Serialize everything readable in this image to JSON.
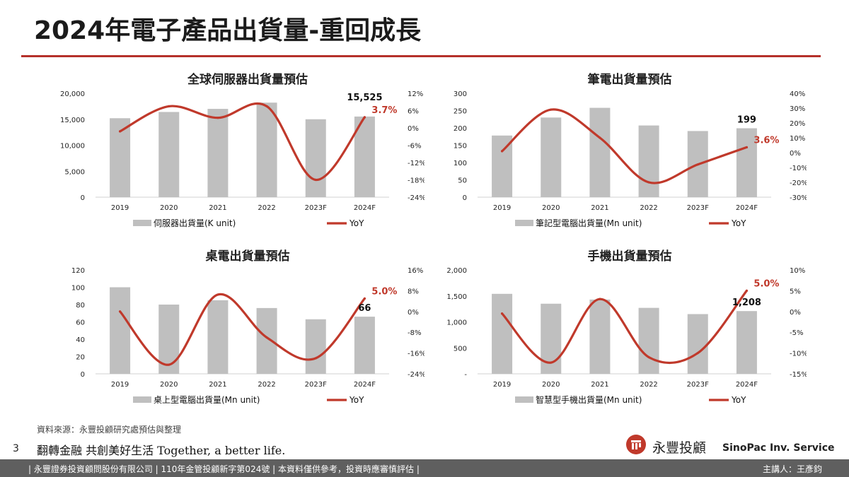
{
  "page": {
    "title": "2024年電子產品出貨量-重回成長",
    "source": "資料來源：永豐投顧研究處預估與整理",
    "page_number": "3",
    "slogan": "翻轉金融 共創美好生活 Together, a better life.",
    "logo_text": "永豐投顧",
    "logo_en": "SinoPac Inv. Service",
    "footer_left": "| 永豐證券投資顧問股份有限公司 | 110年金管投顧新字第024號 | 本資料僅供參考，投資時應審慎評估 |",
    "footer_right": "主講人：王彥鈞"
  },
  "colors": {
    "bar": "#bfbfbf",
    "line": "#c0392b",
    "accent": "#b5302a",
    "footer": "#5f5f5f"
  },
  "chart_data": [
    {
      "type": "bar",
      "title": "全球伺服器出貨量預估",
      "categories": [
        "2019",
        "2020",
        "2021",
        "2022",
        "2023F",
        "2024F"
      ],
      "left_axis": {
        "min": 0,
        "max": 20000,
        "ticks": [
          "0",
          "5,000",
          "10,000",
          "15,000",
          "20,000"
        ]
      },
      "right_axis": {
        "min": -24,
        "max": 12,
        "ticks": [
          "-24%",
          "-18%",
          "-12%",
          "-6%",
          "0%",
          "6%",
          "12%"
        ]
      },
      "series": [
        {
          "name": "伺服器出貨量(K unit)",
          "type": "bar",
          "values": [
            15200,
            16400,
            17000,
            18200,
            15000,
            15525
          ]
        },
        {
          "name": "YoY",
          "type": "line",
          "values": [
            -1.2,
            7.5,
            3.5,
            7.5,
            -18,
            3.7
          ]
        }
      ],
      "annotations": {
        "bar_label": "15,525",
        "line_label": "3.7%"
      }
    },
    {
      "type": "bar",
      "title": "筆電出貨量預估",
      "categories": [
        "2019",
        "2020",
        "2021",
        "2022",
        "2023F",
        "2024F"
      ],
      "left_axis": {
        "min": 0,
        "max": 300,
        "ticks": [
          "0",
          "50",
          "100",
          "150",
          "200",
          "250",
          "300"
        ]
      },
      "right_axis": {
        "min": -30,
        "max": 40,
        "ticks": [
          "-30%",
          "-20%",
          "-10%",
          "0%",
          "10%",
          "20%",
          "30%",
          "40%"
        ]
      },
      "series": [
        {
          "name": "筆記型電腦出貨量(Mn unit)",
          "type": "bar",
          "values": [
            178,
            230,
            258,
            207,
            191,
            199
          ]
        },
        {
          "name": "YoY",
          "type": "line",
          "values": [
            1,
            29,
            10,
            -20,
            -8,
            3.6
          ]
        }
      ],
      "annotations": {
        "bar_label": "199",
        "line_label": "3.6%"
      }
    },
    {
      "type": "bar",
      "title": "桌電出貨量預估",
      "categories": [
        "2019",
        "2020",
        "2021",
        "2022",
        "2023F",
        "2024F"
      ],
      "left_axis": {
        "min": 0,
        "max": 120,
        "ticks": [
          "0",
          "20",
          "40",
          "60",
          "80",
          "100",
          "120"
        ]
      },
      "right_axis": {
        "min": -24,
        "max": 16,
        "ticks": [
          "-24%",
          "-16%",
          "-8%",
          "0%",
          "8%",
          "16%"
        ]
      },
      "series": [
        {
          "name": "桌上型電腦出貨量(Mn unit)",
          "type": "bar",
          "values": [
            100,
            80,
            85,
            76,
            63,
            66
          ]
        },
        {
          "name": "YoY",
          "type": "line",
          "values": [
            0,
            -20.5,
            6.5,
            -10,
            -18,
            5.0
          ]
        }
      ],
      "annotations": {
        "bar_label": "66",
        "line_label": "5.0%"
      }
    },
    {
      "type": "bar",
      "title": "手機出貨量預估",
      "categories": [
        "2019",
        "2020",
        "2021",
        "2022",
        "2023F",
        "2024F"
      ],
      "left_axis": {
        "min": 0,
        "max": 2000,
        "ticks": [
          "-",
          "500",
          "1,000",
          "1,500",
          "2,000"
        ]
      },
      "right_axis": {
        "min": -15,
        "max": 10,
        "ticks": [
          "-15%",
          "-10%",
          "-5%",
          "0%",
          "5%",
          "10%"
        ]
      },
      "series": [
        {
          "name": "智慧型手機出貨量(Mn unit)",
          "type": "bar",
          "values": [
            1540,
            1350,
            1430,
            1270,
            1150,
            1208
          ]
        },
        {
          "name": "YoY",
          "type": "line",
          "values": [
            -0.5,
            -12.3,
            3,
            -11,
            -10,
            5.0
          ]
        }
      ],
      "annotations": {
        "bar_label": "1,208",
        "line_label": "5.0%"
      }
    }
  ]
}
